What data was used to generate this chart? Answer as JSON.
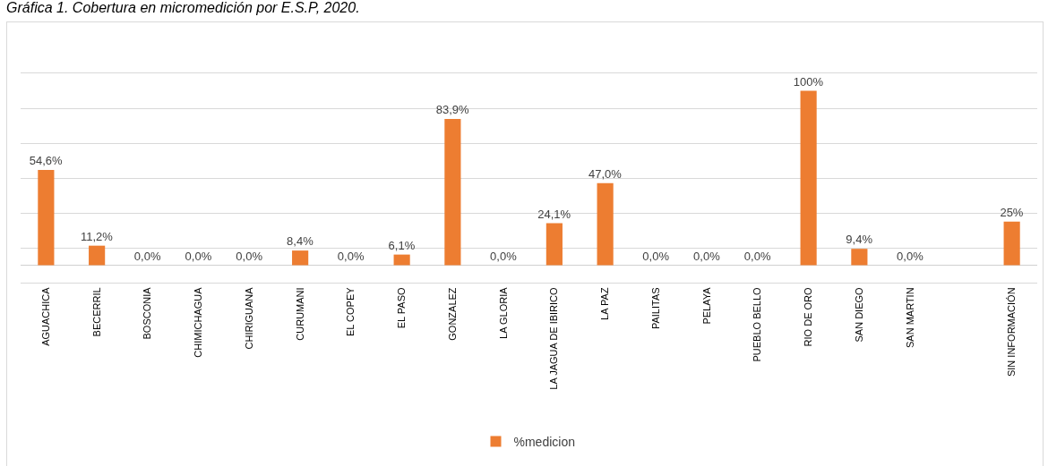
{
  "chart_data": {
    "type": "bar",
    "title": "Gráfica 1. Cobertura en micromedición por E.S.P, 2020.",
    "categories": [
      "AGUACHICA",
      "BECERRIL",
      "BOSCONIA",
      "CHIMICHAGUA",
      "CHIRIGUANA",
      "CURUMANI",
      "EL COPEY",
      "EL PASO",
      "GONZALEZ",
      "LA GLORIA",
      "LA JAGUA DE IBIRICO",
      "LA PAZ",
      "PAILITAS",
      "PELAYA",
      "PUEBLO BELLO",
      "RIO DE ORO",
      "SAN DIEGO",
      "SAN MARTIN",
      null,
      "SIN INFORMACIÓN"
    ],
    "series": [
      {
        "name": "%medicion",
        "color": "#ed7d31",
        "values": [
          54.6,
          11.2,
          0,
          0,
          0,
          8.4,
          0,
          6.1,
          83.9,
          0,
          24.1,
          47.0,
          0,
          0,
          0,
          100,
          9.4,
          0,
          null,
          25
        ],
        "value_labels": [
          "54,6%",
          "11,2%",
          "0,0%",
          "0,0%",
          "0,0%",
          "8,4%",
          "0,0%",
          "6,1%",
          "83,9%",
          "0,0%",
          "24,1%",
          "47,0%",
          "0,0%",
          "0,0%",
          "0,0%",
          "100%",
          "9,4%",
          "0,0%",
          null,
          "25%"
        ]
      }
    ],
    "ylim": [
      -10,
      110
    ],
    "yticks": [
      {
        "value": -10,
        "label": null
      },
      {
        "value": 10,
        "label": null
      },
      {
        "value": 30,
        "label": null
      },
      {
        "value": 50,
        "label": null
      },
      {
        "value": 70,
        "label": null
      },
      {
        "value": 90,
        "label": null
      },
      {
        "value": 110,
        "label": null
      }
    ],
    "grid": "y",
    "legend": "bottom",
    "tick_labels": "x"
  }
}
